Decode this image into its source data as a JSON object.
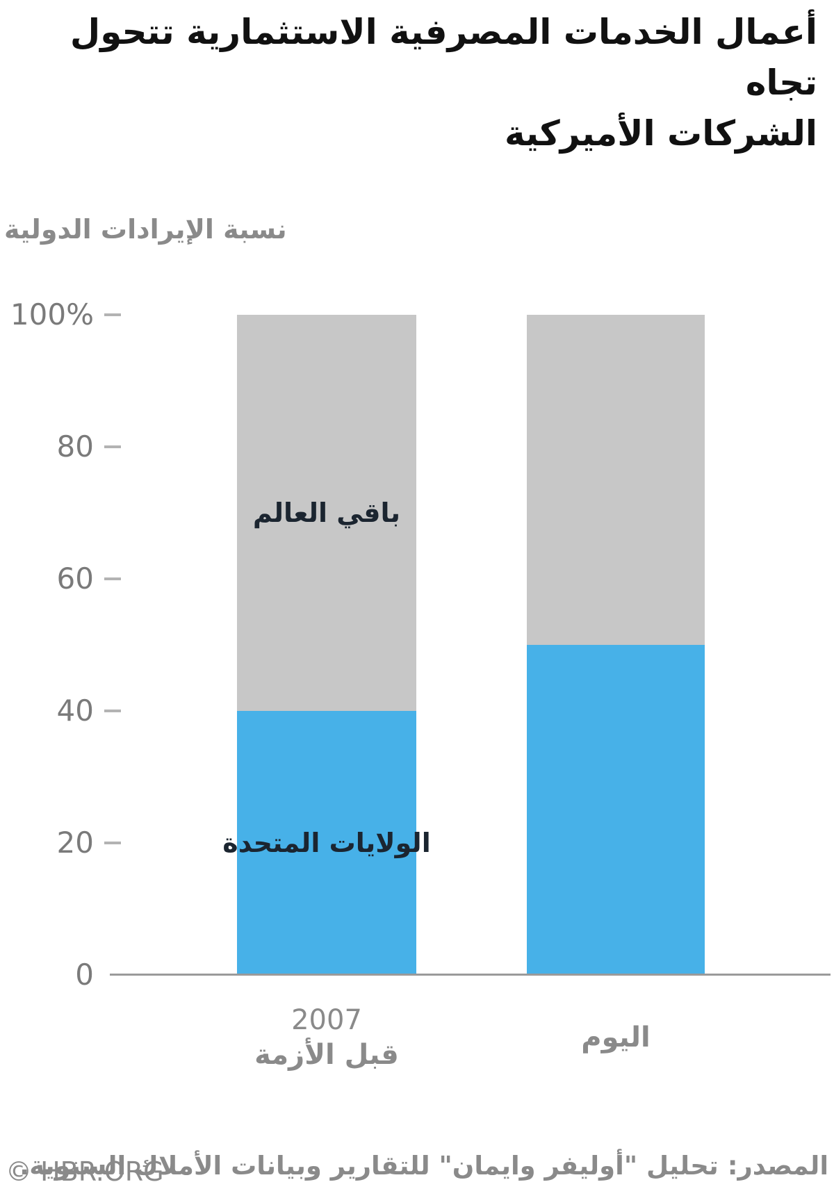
{
  "title": {
    "lines": [
      "أعمال الخدمات المصرفية الاستثمارية تتحول تجاه",
      "الشركات الأميركية"
    ]
  },
  "y_axis": {
    "title": "نسبة الإيرادات الدولية"
  },
  "footer": {
    "copyright": "© HBR.ORG",
    "source": "المصدر: تحليل \"أوليفر وايمان\" للتقارير وبيانات الأملاك السنوية."
  },
  "colors": {
    "us_segment": "#47b1e8",
    "world_segment": "#c7c7c7",
    "title_text": "#111111",
    "axis_text": "#7a7a7a",
    "muted_text": "#8a8a8a",
    "bar_label_text": "#1b2530",
    "axis_line": "#9a9a9a",
    "tick_mark": "#b3b3b3"
  },
  "chart_data": {
    "type": "bar",
    "stacked": true,
    "title": "أعمال الخدمات المصرفية الاستثمارية تتحول تجاه الشركات الأميركية",
    "ylabel": "نسبة الإيرادات الدولية",
    "ylim": [
      0,
      100
    ],
    "grid": false,
    "legend_position": "labels-inside-first-bar",
    "yticks": [
      {
        "label": "0",
        "value": 0
      },
      {
        "label": "20",
        "value": 20
      },
      {
        "label": "40",
        "value": 40
      },
      {
        "label": "60",
        "value": 60
      },
      {
        "label": "80",
        "value": 80
      },
      {
        "label": "100%",
        "value": 100
      }
    ],
    "categories": [
      [
        "2007",
        "قبل الأزمة"
      ],
      [
        "اليوم"
      ]
    ],
    "series": [
      {
        "name": "الولايات المتحدة",
        "color": "#47b1e8",
        "values": [
          40,
          50
        ]
      },
      {
        "name": "باقي العالم",
        "color": "#c7c7c7",
        "values": [
          60,
          50
        ]
      }
    ]
  }
}
